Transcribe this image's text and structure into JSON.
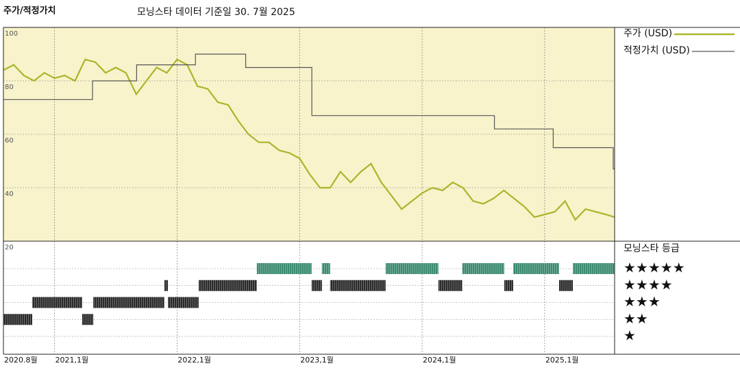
{
  "chart_data": {
    "type": "line",
    "panel_title": "주가/적정가치",
    "title": "모닝스타 데이터 기준일 30. 7월 2025",
    "xlim": [
      2020.583,
      2025.571
    ],
    "xticks": [
      {
        "value": 2020.583,
        "label": "2020.8월"
      },
      {
        "value": 2021,
        "label": "2021,1월"
      },
      {
        "value": 2022,
        "label": "2022,1월"
      },
      {
        "value": 2023,
        "label": "2023,1월"
      },
      {
        "value": 2024,
        "label": "2024,1월"
      },
      {
        "value": 2025,
        "label": "2025,1월"
      }
    ],
    "ylim": [
      20,
      100
    ],
    "yticks": [
      100,
      80,
      60,
      40,
      20
    ],
    "series": [
      {
        "name": "주가 (USD)",
        "color": "#a9b52a",
        "step": false,
        "x": [
          2020.583,
          2020.667,
          2020.75,
          2020.833,
          2020.917,
          2021.0,
          2021.083,
          2021.167,
          2021.25,
          2021.333,
          2021.417,
          2021.5,
          2021.583,
          2021.667,
          2021.75,
          2021.833,
          2021.917,
          2022.0,
          2022.083,
          2022.167,
          2022.25,
          2022.333,
          2022.417,
          2022.5,
          2022.583,
          2022.667,
          2022.75,
          2022.833,
          2022.917,
          2023.0,
          2023.083,
          2023.167,
          2023.25,
          2023.333,
          2023.417,
          2023.5,
          2023.583,
          2023.667,
          2023.75,
          2023.833,
          2023.917,
          2024.0,
          2024.083,
          2024.167,
          2024.25,
          2024.333,
          2024.417,
          2024.5,
          2024.583,
          2024.667,
          2024.75,
          2024.833,
          2024.917,
          2025.0,
          2025.083,
          2025.167,
          2025.25,
          2025.333,
          2025.417,
          2025.5,
          2025.571
        ],
        "values": [
          84,
          86,
          82,
          80,
          83,
          81,
          82,
          80,
          88,
          87,
          83,
          85,
          83,
          75,
          80,
          85,
          83,
          88,
          86,
          78,
          77,
          72,
          71,
          65,
          60,
          57,
          57,
          54,
          53,
          51,
          45,
          40,
          40,
          46,
          42,
          46,
          49,
          42,
          37,
          32,
          35,
          38,
          40,
          39,
          42,
          40,
          35,
          34,
          36,
          39,
          36,
          33,
          29,
          30,
          31,
          35,
          28,
          32,
          31,
          30,
          29
        ]
      },
      {
        "name": "적정가치 (USD)",
        "color": "#555555",
        "step": true,
        "x": [
          2020.583,
          2021.31,
          2021.67,
          2022.15,
          2022.56,
          2023.1,
          2024.59,
          2025.07,
          2025.56
        ],
        "values": [
          73,
          80,
          86,
          90,
          85,
          67,
          62,
          55,
          47
        ]
      }
    ],
    "rating": {
      "title": "모닝스타 등급",
      "labels": [
        "★★★★★",
        "★★★★",
        "★★★",
        "★★",
        "★"
      ],
      "high_color": "#3b8b70",
      "low_color": "#2a2a2a",
      "periods": [
        {
          "start": 2020.583,
          "end": 2020.818,
          "stars": 2
        },
        {
          "start": 2020.818,
          "end": 2021.226,
          "stars": 3
        },
        {
          "start": 2021.226,
          "end": 2021.316,
          "stars": 2
        },
        {
          "start": 2021.316,
          "end": 2021.897,
          "stars": 3
        },
        {
          "start": 2021.897,
          "end": 2021.925,
          "stars": 4
        },
        {
          "start": 2021.925,
          "end": 2022.176,
          "stars": 3
        },
        {
          "start": 2022.176,
          "end": 2022.651,
          "stars": 4
        },
        {
          "start": 2022.651,
          "end": 2023.098,
          "stars": 5
        },
        {
          "start": 2023.098,
          "end": 2023.182,
          "stars": 4
        },
        {
          "start": 2023.182,
          "end": 2023.249,
          "stars": 5
        },
        {
          "start": 2023.249,
          "end": 2023.702,
          "stars": 4
        },
        {
          "start": 2023.702,
          "end": 2024.133,
          "stars": 5
        },
        {
          "start": 2024.133,
          "end": 2024.328,
          "stars": 4
        },
        {
          "start": 2024.328,
          "end": 2024.67,
          "stars": 5
        },
        {
          "start": 2024.67,
          "end": 2024.743,
          "stars": 4
        },
        {
          "start": 2024.743,
          "end": 2025.118,
          "stars": 5
        },
        {
          "start": 2025.118,
          "end": 2025.23,
          "stars": 4
        },
        {
          "start": 2025.23,
          "end": 2025.571,
          "stars": 5
        }
      ]
    }
  }
}
